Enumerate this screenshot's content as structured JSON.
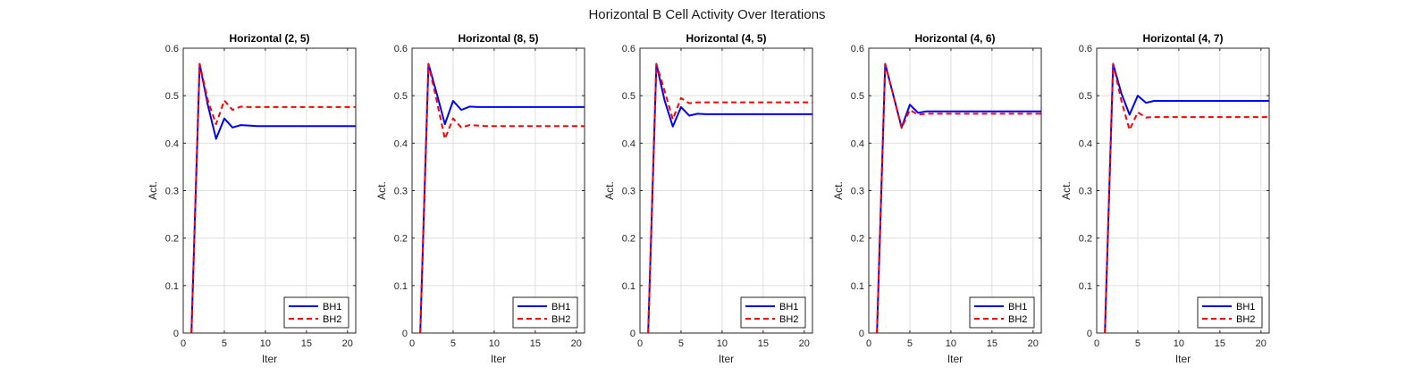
{
  "figure": {
    "suptitle": "Horizontal B Cell Activity Over Iterations"
  },
  "chart_data": [
    {
      "type": "line",
      "title": "Horizontal (2, 5)",
      "xlabel": "Iter",
      "ylabel": "Act.",
      "xlim": [
        0,
        21
      ],
      "ylim": [
        0,
        0.6
      ],
      "xticks": [
        0,
        5,
        10,
        15,
        20
      ],
      "yticks": [
        0,
        0.1,
        0.2,
        0.3,
        0.4,
        0.5,
        0.6
      ],
      "grid": true,
      "legend_position": "bottom-right",
      "x": [
        1,
        2,
        3,
        4,
        5,
        6,
        7,
        8,
        9,
        10,
        11,
        12,
        13,
        14,
        15,
        16,
        17,
        18,
        19,
        20,
        21
      ],
      "series": [
        {
          "name": "BH1",
          "color": "#0000ff",
          "style": "solid",
          "values": [
            0,
            0.567,
            0.48,
            0.409,
            0.452,
            0.433,
            0.438,
            0.437,
            0.436,
            0.436,
            0.436,
            0.436,
            0.436,
            0.436,
            0.436,
            0.436,
            0.436,
            0.436,
            0.436,
            0.436,
            0.436
          ]
        },
        {
          "name": "BH2",
          "color": "#ff0000",
          "style": "dashed",
          "values": [
            0,
            0.567,
            0.49,
            0.44,
            0.49,
            0.47,
            0.477,
            0.476,
            0.476,
            0.476,
            0.476,
            0.476,
            0.476,
            0.476,
            0.476,
            0.476,
            0.476,
            0.476,
            0.476,
            0.476,
            0.476
          ]
        }
      ]
    },
    {
      "type": "line",
      "title": "Horizontal (8, 5)",
      "xlabel": "Iter",
      "ylabel": "Act.",
      "xlim": [
        0,
        21
      ],
      "ylim": [
        0,
        0.6
      ],
      "xticks": [
        0,
        5,
        10,
        15,
        20
      ],
      "yticks": [
        0,
        0.1,
        0.2,
        0.3,
        0.4,
        0.5,
        0.6
      ],
      "grid": true,
      "legend_position": "bottom-right",
      "x": [
        1,
        2,
        3,
        4,
        5,
        6,
        7,
        8,
        9,
        10,
        11,
        12,
        13,
        14,
        15,
        16,
        17,
        18,
        19,
        20,
        21
      ],
      "series": [
        {
          "name": "BH1",
          "color": "#0000ff",
          "style": "solid",
          "values": [
            0,
            0.567,
            0.505,
            0.44,
            0.489,
            0.47,
            0.477,
            0.476,
            0.476,
            0.476,
            0.476,
            0.476,
            0.476,
            0.476,
            0.476,
            0.476,
            0.476,
            0.476,
            0.476,
            0.476,
            0.476
          ]
        },
        {
          "name": "BH2",
          "color": "#ff0000",
          "style": "dashed",
          "values": [
            0,
            0.567,
            0.49,
            0.409,
            0.452,
            0.433,
            0.438,
            0.437,
            0.436,
            0.436,
            0.436,
            0.436,
            0.436,
            0.436,
            0.436,
            0.436,
            0.436,
            0.436,
            0.436,
            0.436,
            0.436
          ]
        }
      ]
    },
    {
      "type": "line",
      "title": "Horizontal (4, 5)",
      "xlabel": "Iter",
      "ylabel": "Act.",
      "xlim": [
        0,
        21
      ],
      "ylim": [
        0,
        0.6
      ],
      "xticks": [
        0,
        5,
        10,
        15,
        20
      ],
      "yticks": [
        0,
        0.1,
        0.2,
        0.3,
        0.4,
        0.5,
        0.6
      ],
      "grid": true,
      "legend_position": "bottom-right",
      "x": [
        1,
        2,
        3,
        4,
        5,
        6,
        7,
        8,
        9,
        10,
        11,
        12,
        13,
        14,
        15,
        16,
        17,
        18,
        19,
        20,
        21
      ],
      "series": [
        {
          "name": "BH1",
          "color": "#0000ff",
          "style": "solid",
          "values": [
            0,
            0.567,
            0.49,
            0.435,
            0.476,
            0.458,
            0.462,
            0.461,
            0.461,
            0.461,
            0.461,
            0.461,
            0.461,
            0.461,
            0.461,
            0.461,
            0.461,
            0.461,
            0.461,
            0.461,
            0.461
          ]
        },
        {
          "name": "BH2",
          "color": "#ff0000",
          "style": "dashed",
          "values": [
            0,
            0.567,
            0.51,
            0.45,
            0.495,
            0.484,
            0.486,
            0.486,
            0.486,
            0.486,
            0.486,
            0.486,
            0.486,
            0.486,
            0.486,
            0.486,
            0.486,
            0.486,
            0.486,
            0.486,
            0.486
          ]
        }
      ]
    },
    {
      "type": "line",
      "title": "Horizontal (4, 6)",
      "xlabel": "Iter",
      "ylabel": "Act.",
      "xlim": [
        0,
        21
      ],
      "ylim": [
        0,
        0.6
      ],
      "xticks": [
        0,
        5,
        10,
        15,
        20
      ],
      "yticks": [
        0,
        0.1,
        0.2,
        0.3,
        0.4,
        0.5,
        0.6
      ],
      "grid": true,
      "legend_position": "bottom-right",
      "x": [
        1,
        2,
        3,
        4,
        5,
        6,
        7,
        8,
        9,
        10,
        11,
        12,
        13,
        14,
        15,
        16,
        17,
        18,
        19,
        20,
        21
      ],
      "series": [
        {
          "name": "BH1",
          "color": "#0000ff",
          "style": "solid",
          "values": [
            0,
            0.567,
            0.5,
            0.433,
            0.481,
            0.464,
            0.467,
            0.467,
            0.467,
            0.467,
            0.467,
            0.467,
            0.467,
            0.467,
            0.467,
            0.467,
            0.467,
            0.467,
            0.467,
            0.467,
            0.467
          ]
        },
        {
          "name": "BH2",
          "color": "#ff0000",
          "style": "dashed",
          "values": [
            0,
            0.567,
            0.5,
            0.432,
            0.47,
            0.46,
            0.462,
            0.462,
            0.462,
            0.462,
            0.462,
            0.462,
            0.462,
            0.462,
            0.462,
            0.462,
            0.462,
            0.462,
            0.462,
            0.462,
            0.462
          ]
        }
      ]
    },
    {
      "type": "line",
      "title": "Horizontal (4, 7)",
      "xlabel": "Iter",
      "ylabel": "Act.",
      "xlim": [
        0,
        21
      ],
      "ylim": [
        0,
        0.6
      ],
      "xticks": [
        0,
        5,
        10,
        15,
        20
      ],
      "yticks": [
        0,
        0.1,
        0.2,
        0.3,
        0.4,
        0.5,
        0.6
      ],
      "grid": true,
      "legend_position": "bottom-right",
      "x": [
        1,
        2,
        3,
        4,
        5,
        6,
        7,
        8,
        9,
        10,
        11,
        12,
        13,
        14,
        15,
        16,
        17,
        18,
        19,
        20,
        21
      ],
      "series": [
        {
          "name": "BH1",
          "color": "#0000ff",
          "style": "solid",
          "values": [
            0,
            0.567,
            0.505,
            0.46,
            0.5,
            0.485,
            0.489,
            0.489,
            0.489,
            0.489,
            0.489,
            0.489,
            0.489,
            0.489,
            0.489,
            0.489,
            0.489,
            0.489,
            0.489,
            0.489,
            0.489
          ]
        },
        {
          "name": "BH2",
          "color": "#ff0000",
          "style": "dashed",
          "values": [
            0,
            0.567,
            0.49,
            0.428,
            0.465,
            0.454,
            0.455,
            0.455,
            0.455,
            0.455,
            0.455,
            0.455,
            0.455,
            0.455,
            0.455,
            0.455,
            0.455,
            0.455,
            0.455,
            0.455,
            0.455
          ]
        }
      ]
    }
  ]
}
